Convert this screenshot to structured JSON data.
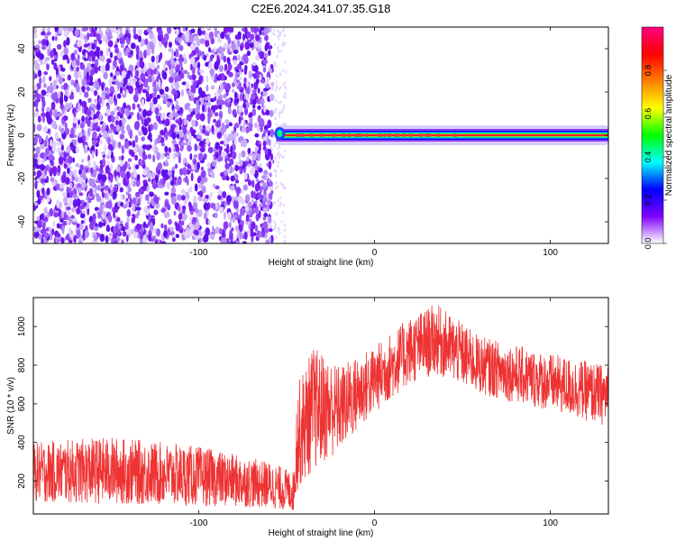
{
  "title": "C2E6.2024.341.07.35.G18",
  "chart_data": [
    {
      "type": "heatmap",
      "xlabel": "Height of straight line (km)",
      "ylabel": "Frequency (Hz)",
      "xlim": [
        -194,
        133
      ],
      "ylim": [
        -50,
        50
      ],
      "xticks": [
        -100,
        0,
        100
      ],
      "yticks": [
        -40,
        -20,
        0,
        20,
        40
      ],
      "noise_region_x": [
        -194,
        -58
      ],
      "line_region_x": [
        -58,
        133
      ],
      "line_frequency": 0,
      "colorbar": {
        "label": "Normalized spectral amplitude",
        "range": [
          0,
          1
        ],
        "ticks": [
          0.0,
          0.2,
          0.4,
          0.6,
          0.8
        ],
        "colors": [
          "#ffffff",
          "#8000ff",
          "#0000ff",
          "#00ffff",
          "#00ff00",
          "#ffff00",
          "#ff8000",
          "#ff0000",
          "#ff0080"
        ]
      }
    },
    {
      "type": "line",
      "xlabel": "Height of straight line (km)",
      "ylabel": "SNR (10 * v/v)",
      "xlim": [
        -194,
        133
      ],
      "ylim": [
        30,
        1150
      ],
      "xticks": [
        -100,
        0,
        100
      ],
      "yticks": [
        200,
        400,
        600,
        800,
        1000
      ],
      "series": [
        {
          "color": "#ee3333",
          "envelope": [
            {
              "x": -194,
              "low": 90,
              "high": 400
            },
            {
              "x": -150,
              "low": 80,
              "high": 430
            },
            {
              "x": -100,
              "low": 70,
              "high": 380
            },
            {
              "x": -60,
              "low": 60,
              "high": 300
            },
            {
              "x": -46,
              "low": 40,
              "high": 250
            },
            {
              "x": -44,
              "low": 150,
              "high": 700
            },
            {
              "x": -35,
              "low": 250,
              "high": 900
            },
            {
              "x": -20,
              "low": 350,
              "high": 800
            },
            {
              "x": 0,
              "low": 550,
              "high": 900
            },
            {
              "x": 20,
              "low": 700,
              "high": 1050
            },
            {
              "x": 35,
              "low": 750,
              "high": 1120
            },
            {
              "x": 60,
              "low": 650,
              "high": 950
            },
            {
              "x": 100,
              "low": 560,
              "high": 860
            },
            {
              "x": 133,
              "low": 480,
              "high": 800
            }
          ]
        }
      ]
    }
  ]
}
